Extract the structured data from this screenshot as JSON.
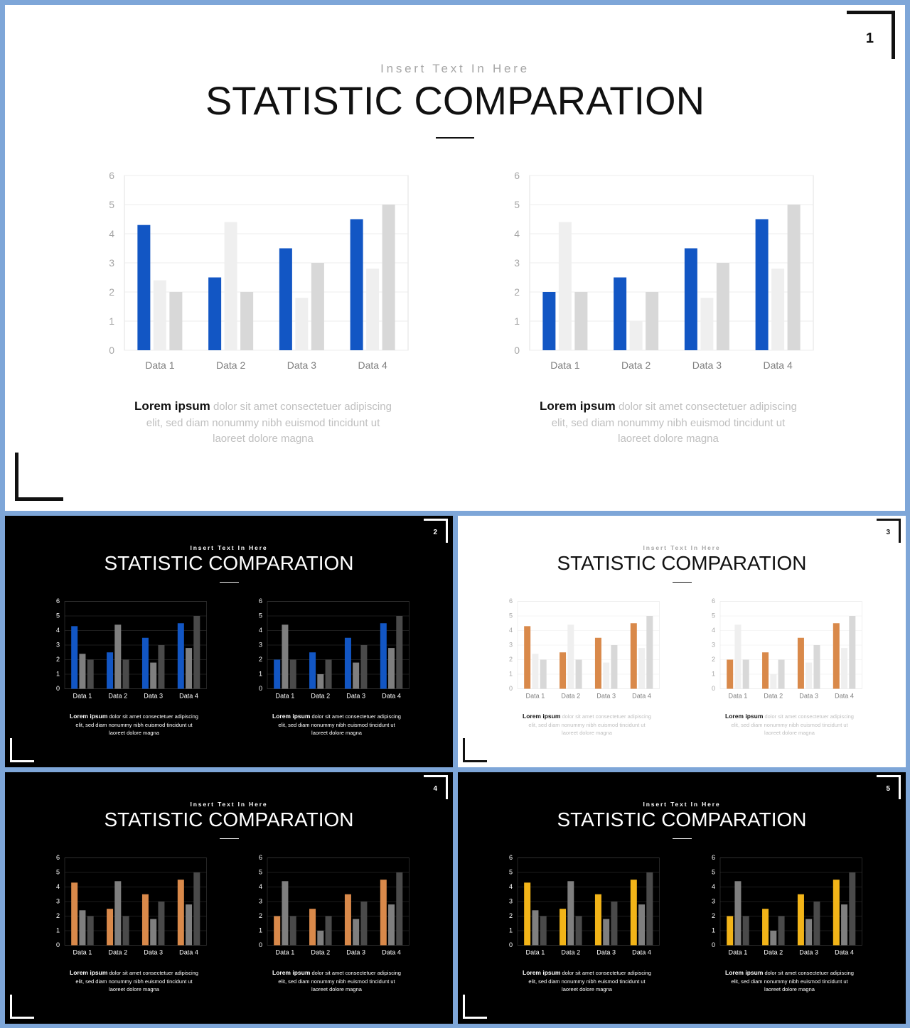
{
  "colors": {
    "page_background": "#7ea6d8",
    "blue": "#1256c4",
    "orange": "#d9894a",
    "gold": "#f2b418",
    "light_slide": "#ffffff",
    "dark_slide": "#000000"
  },
  "slides": [
    {
      "number": "1",
      "theme": "light",
      "accent": "#1256c4",
      "subtitle": "Insert Text In Here",
      "title": "STATISTIC COMPARATION",
      "charts": [
        {
          "chart_data": {
            "type": "bar",
            "categories": [
              "Data 1",
              "Data 2",
              "Data 3",
              "Data 4"
            ],
            "yticks": [
              "0",
              "1",
              "2",
              "3",
              "4",
              "5",
              "6"
            ],
            "ylim": [
              0,
              6
            ],
            "grid": true,
            "legend": "none",
            "series": [
              {
                "values": [
                  4.3,
                  2.5,
                  3.5,
                  4.5
                ]
              },
              {
                "values": [
                  2.4,
                  4.4,
                  1.8,
                  2.8
                ]
              },
              {
                "values": [
                  2,
                  2,
                  3,
                  5
                ]
              }
            ]
          },
          "caption_lead": "Lorem ipsum",
          "caption_text": "dolor sit amet consectetuer adipiscing elit, sed diam nonummy nibh euismod tincidunt ut laoreet dolore magna"
        },
        {
          "chart_data": {
            "type": "bar",
            "categories": [
              "Data 1",
              "Data 2",
              "Data 3",
              "Data 4"
            ],
            "yticks": [
              "0",
              "1",
              "2",
              "3",
              "4",
              "5",
              "6"
            ],
            "ylim": [
              0,
              6
            ],
            "grid": true,
            "legend": "none",
            "series": [
              {
                "values": [
                  2,
                  2.5,
                  3.5,
                  4.5
                ]
              },
              {
                "values": [
                  4.4,
                  1,
                  1.8,
                  2.8
                ]
              },
              {
                "values": [
                  2,
                  2,
                  3,
                  5
                ]
              }
            ]
          },
          "caption_lead": "Lorem ipsum",
          "caption_text": "dolor sit amet consectetuer adipiscing elit, sed diam nonummy nibh euismod tincidunt ut laoreet dolore magna"
        }
      ]
    },
    {
      "number": "2",
      "theme": "dark",
      "accent": "#1256c4",
      "subtitle": "Insert Text In Here",
      "title": "STATISTIC COMPARATION",
      "charts": [
        {
          "chart_data": {
            "type": "bar",
            "categories": [
              "Data 1",
              "Data 2",
              "Data 3",
              "Data 4"
            ],
            "yticks": [
              "0",
              "1",
              "2",
              "3",
              "4",
              "5",
              "6"
            ],
            "ylim": [
              0,
              6
            ],
            "grid": true,
            "legend": "none",
            "series": [
              {
                "values": [
                  4.3,
                  2.5,
                  3.5,
                  4.5
                ]
              },
              {
                "values": [
                  2.4,
                  4.4,
                  1.8,
                  2.8
                ]
              },
              {
                "values": [
                  2,
                  2,
                  3,
                  5
                ]
              }
            ]
          },
          "caption_lead": "Lorem ipsum",
          "caption_text": "dolor sit amet consectetuer adipiscing elit, sed diam nonummy nibh euismod tincidunt ut laoreet dolore magna"
        },
        {
          "chart_data": {
            "type": "bar",
            "categories": [
              "Data 1",
              "Data 2",
              "Data 3",
              "Data 4"
            ],
            "yticks": [
              "0",
              "1",
              "2",
              "3",
              "4",
              "5",
              "6"
            ],
            "ylim": [
              0,
              6
            ],
            "grid": true,
            "legend": "none",
            "series": [
              {
                "values": [
                  2,
                  2.5,
                  3.5,
                  4.5
                ]
              },
              {
                "values": [
                  4.4,
                  1,
                  1.8,
                  2.8
                ]
              },
              {
                "values": [
                  2,
                  2,
                  3,
                  5
                ]
              }
            ]
          },
          "caption_lead": "Lorem ipsum",
          "caption_text": "dolor sit amet consectetuer adipiscing elit, sed diam nonummy nibh euismod tincidunt ut laoreet dolore magna"
        }
      ]
    },
    {
      "number": "3",
      "theme": "light",
      "accent": "#d9894a",
      "subtitle": "Insert Text In Here",
      "title": "STATISTIC COMPARATION",
      "charts": [
        {
          "chart_data": {
            "type": "bar",
            "categories": [
              "Data 1",
              "Data 2",
              "Data 3",
              "Data 4"
            ],
            "yticks": [
              "0",
              "1",
              "2",
              "3",
              "4",
              "5",
              "6"
            ],
            "ylim": [
              0,
              6
            ],
            "grid": true,
            "legend": "none",
            "series": [
              {
                "values": [
                  4.3,
                  2.5,
                  3.5,
                  4.5
                ]
              },
              {
                "values": [
                  2.4,
                  4.4,
                  1.8,
                  2.8
                ]
              },
              {
                "values": [
                  2,
                  2,
                  3,
                  5
                ]
              }
            ]
          },
          "caption_lead": "Lorem ipsum",
          "caption_text": "dolor sit amet consectetuer adipiscing elit, sed diam nonummy nibh euismod tincidunt ut laoreet dolore magna"
        },
        {
          "chart_data": {
            "type": "bar",
            "categories": [
              "Data 1",
              "Data 2",
              "Data 3",
              "Data 4"
            ],
            "yticks": [
              "0",
              "1",
              "2",
              "3",
              "4",
              "5",
              "6"
            ],
            "ylim": [
              0,
              6
            ],
            "grid": true,
            "legend": "none",
            "series": [
              {
                "values": [
                  2,
                  2.5,
                  3.5,
                  4.5
                ]
              },
              {
                "values": [
                  4.4,
                  1,
                  1.8,
                  2.8
                ]
              },
              {
                "values": [
                  2,
                  2,
                  3,
                  5
                ]
              }
            ]
          },
          "caption_lead": "Lorem ipsum",
          "caption_text": "dolor sit amet consectetuer adipiscing elit, sed diam nonummy nibh euismod tincidunt ut laoreet dolore magna"
        }
      ]
    },
    {
      "number": "4",
      "theme": "dark",
      "accent": "#d9894a",
      "subtitle": "Insert Text In Here",
      "title": "STATISTIC COMPARATION",
      "charts": [
        {
          "chart_data": {
            "type": "bar",
            "categories": [
              "Data 1",
              "Data 2",
              "Data 3",
              "Data 4"
            ],
            "yticks": [
              "0",
              "1",
              "2",
              "3",
              "4",
              "5",
              "6"
            ],
            "ylim": [
              0,
              6
            ],
            "grid": true,
            "legend": "none",
            "series": [
              {
                "values": [
                  4.3,
                  2.5,
                  3.5,
                  4.5
                ]
              },
              {
                "values": [
                  2.4,
                  4.4,
                  1.8,
                  2.8
                ]
              },
              {
                "values": [
                  2,
                  2,
                  3,
                  5
                ]
              }
            ]
          },
          "caption_lead": "Lorem ipsum",
          "caption_text": "dolor sit amet consectetuer adipiscing elit, sed diam nonummy nibh euismod tincidunt ut laoreet dolore magna"
        },
        {
          "chart_data": {
            "type": "bar",
            "categories": [
              "Data 1",
              "Data 2",
              "Data 3",
              "Data 4"
            ],
            "yticks": [
              "0",
              "1",
              "2",
              "3",
              "4",
              "5",
              "6"
            ],
            "ylim": [
              0,
              6
            ],
            "grid": true,
            "legend": "none",
            "series": [
              {
                "values": [
                  2,
                  2.5,
                  3.5,
                  4.5
                ]
              },
              {
                "values": [
                  4.4,
                  1,
                  1.8,
                  2.8
                ]
              },
              {
                "values": [
                  2,
                  2,
                  3,
                  5
                ]
              }
            ]
          },
          "caption_lead": "Lorem ipsum",
          "caption_text": "dolor sit amet consectetuer adipiscing elit, sed diam nonummy nibh euismod tincidunt ut laoreet dolore magna"
        }
      ]
    },
    {
      "number": "5",
      "theme": "dark",
      "accent": "#f2b418",
      "subtitle": "Insert Text In Here",
      "title": "STATISTIC COMPARATION",
      "charts": [
        {
          "chart_data": {
            "type": "bar",
            "categories": [
              "Data 1",
              "Data 2",
              "Data 3",
              "Data 4"
            ],
            "yticks": [
              "0",
              "1",
              "2",
              "3",
              "4",
              "5",
              "6"
            ],
            "ylim": [
              0,
              6
            ],
            "grid": true,
            "legend": "none",
            "series": [
              {
                "values": [
                  4.3,
                  2.5,
                  3.5,
                  4.5
                ]
              },
              {
                "values": [
                  2.4,
                  4.4,
                  1.8,
                  2.8
                ]
              },
              {
                "values": [
                  2,
                  2,
                  3,
                  5
                ]
              }
            ]
          },
          "caption_lead": "Lorem ipsum",
          "caption_text": "dolor sit amet consectetuer adipiscing elit, sed diam nonummy nibh euismod tincidunt ut laoreet dolore magna"
        },
        {
          "chart_data": {
            "type": "bar",
            "categories": [
              "Data 1",
              "Data 2",
              "Data 3",
              "Data 4"
            ],
            "yticks": [
              "0",
              "1",
              "2",
              "3",
              "4",
              "5",
              "6"
            ],
            "ylim": [
              0,
              6
            ],
            "grid": true,
            "legend": "none",
            "series": [
              {
                "values": [
                  2,
                  2.5,
                  3.5,
                  4.5
                ]
              },
              {
                "values": [
                  4.4,
                  1,
                  1.8,
                  2.8
                ]
              },
              {
                "values": [
                  2,
                  2,
                  3,
                  5
                ]
              }
            ]
          },
          "caption_lead": "Lorem ipsum",
          "caption_text": "dolor sit amet consectetuer adipiscing elit, sed diam nonummy nibh euismod tincidunt ut laoreet dolore magna"
        }
      ]
    }
  ]
}
